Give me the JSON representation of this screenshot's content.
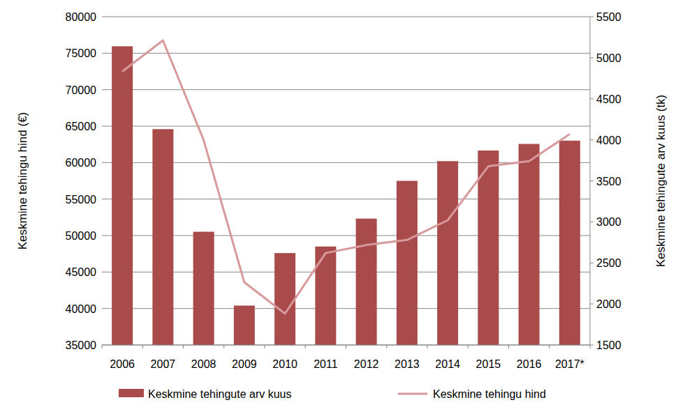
{
  "chart_data": {
    "type": "bar",
    "categories": [
      "2006",
      "2007",
      "2008",
      "2009",
      "2010",
      "2011",
      "2012",
      "2013",
      "2014",
      "2015",
      "2016",
      "2017*"
    ],
    "series": [
      {
        "name": "Keskmine tehingute arv kuus",
        "type": "bar",
        "axis": "y2",
        "color": "#a94a4b",
        "values": [
          5140,
          4130,
          2880,
          1980,
          2620,
          2700,
          3040,
          3500,
          3740,
          3870,
          3950,
          3990
        ]
      },
      {
        "name": "Keskmine tehingu hind",
        "type": "line",
        "color": "#d8999a",
        "values": [
          72500,
          76750,
          63100,
          43600,
          39300,
          47600,
          48700,
          49400,
          52100,
          59500,
          60200,
          63900
        ]
      }
    ],
    "ylabel": "Keskmine tehingu hind (€)",
    "y2label": "Keskmine tehingute arv kuus (tk)",
    "ylim": [
      35000,
      80000
    ],
    "yticks": [
      35000,
      40000,
      45000,
      50000,
      55000,
      60000,
      65000,
      70000,
      75000,
      80000
    ],
    "y2lim": [
      1500,
      5500
    ],
    "y2ticks": [
      1500,
      2000,
      2500,
      3000,
      3500,
      4000,
      4500,
      5000,
      5500
    ],
    "grid": true,
    "legend": "bottom"
  }
}
